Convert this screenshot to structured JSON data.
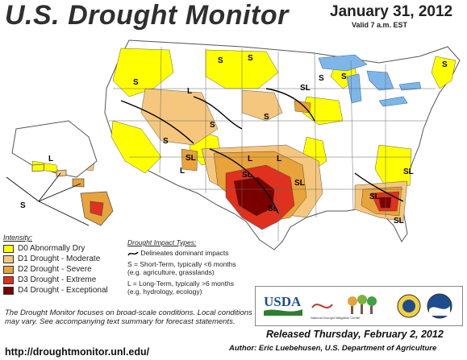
{
  "title": "U.S. Drought Monitor",
  "date": "January 31, 2012",
  "valid": "Valid 7 a.m. EST",
  "colors": {
    "D0": "#ffff00",
    "D1": "#f5c77e",
    "D2": "#e8a33a",
    "D3": "#e0301e",
    "D4": "#7a0000",
    "land": "#ffffff",
    "water": "#7fb6e8"
  },
  "legend": {
    "header": "Intensity:",
    "items": [
      {
        "key": "D0",
        "label": "D0 Abnormally Dry"
      },
      {
        "key": "D1",
        "label": "D1 Drought - Moderate"
      },
      {
        "key": "D2",
        "label": "D2 Drought - Severe"
      },
      {
        "key": "D3",
        "label": "D3 Drought - Extreme"
      },
      {
        "key": "D4",
        "label": "D4 Drought - Exceptional"
      }
    ]
  },
  "impact": {
    "header": "Drought Impact Types:",
    "line": "Delineates dominant impacts",
    "short": "S = Short-Term, typically <6 months",
    "short_sub": "(e.g. agriculture, grasslands)",
    "long": "L = Long-Term, typically >6 months",
    "long_sub": "(e.g. hydrology, ecology)"
  },
  "note": "The Drought Monitor focuses on broad-scale conditions. Local conditions may vary. See accompanying text summary for forecast statements.",
  "url": "http://droughtmonitor.unl.edu/",
  "released": "Released Thursday, February 2, 2012",
  "author": "Author: Eric Luebehusen, U.S. Department of Agriculture",
  "logos": {
    "usda": "USDA",
    "ndmc": "National Drought Mitigation Center"
  },
  "map_labels": {
    "S": "S",
    "L": "L",
    "SL": "SL"
  }
}
